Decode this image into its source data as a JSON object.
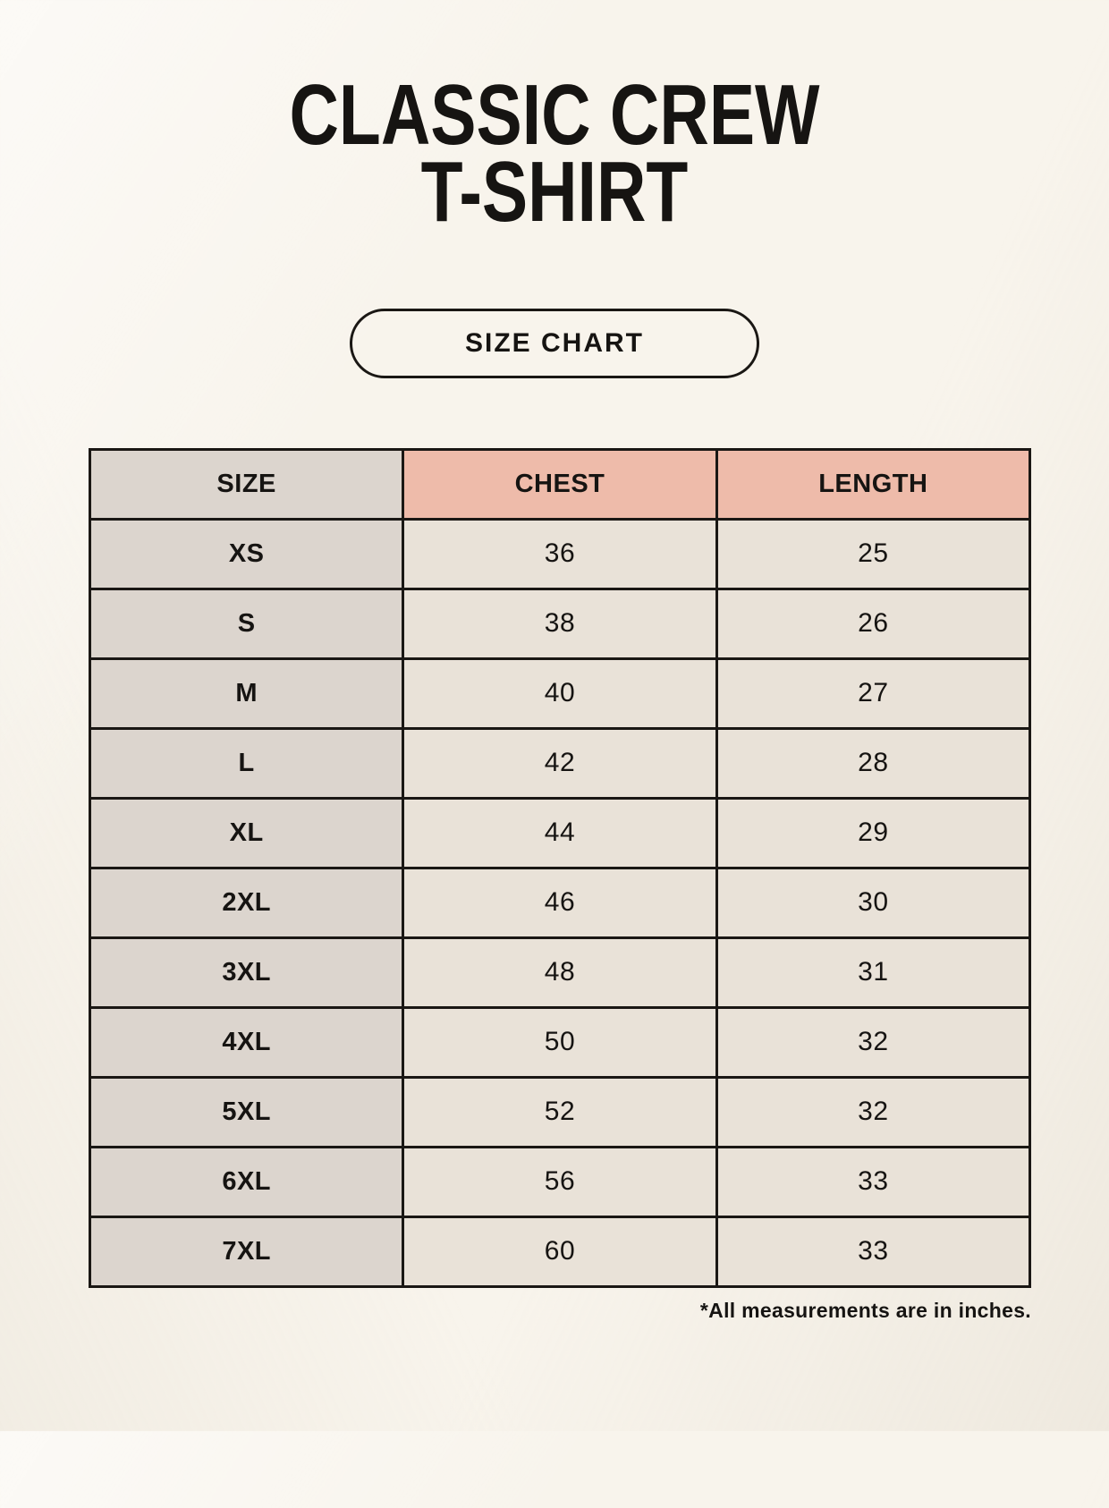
{
  "header": {
    "title": "CLASSIC CREW\nT-SHIRT"
  },
  "size_chart_button": {
    "label": "SIZE CHART"
  },
  "table": {
    "columns": [
      "SIZE",
      "CHEST",
      "LENGTH"
    ],
    "rows": [
      [
        "XS",
        "36",
        "25"
      ],
      [
        "S",
        "38",
        "26"
      ],
      [
        "M",
        "40",
        "27"
      ],
      [
        "L",
        "42",
        "28"
      ],
      [
        "XL",
        "44",
        "29"
      ],
      [
        "2XL",
        "46",
        "30"
      ],
      [
        "3XL",
        "48",
        "31"
      ],
      [
        "4XL",
        "50",
        "32"
      ],
      [
        "5XL",
        "52",
        "32"
      ],
      [
        "6XL",
        "56",
        "33"
      ],
      [
        "7XL",
        "60",
        "33"
      ]
    ]
  },
  "footnote": "*All measurements are in inches.",
  "colors": {
    "page_bg": "#f8f4ec",
    "size_col_bg": "#dcd5ce",
    "accent_header_bg": "#eebbaa",
    "data_cell_bg": "#e9e2d8",
    "table_border": "#1a1714",
    "text": "#161412"
  }
}
